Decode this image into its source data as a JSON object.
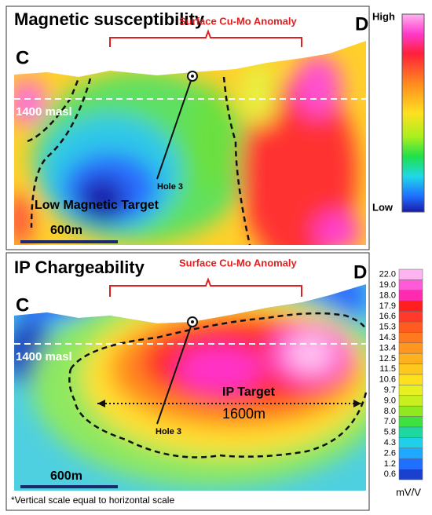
{
  "panels": [
    {
      "title": "Magnetic susceptibility",
      "annotation": "Surface Cu-Mo Anomaly",
      "left_label": "C",
      "right_label": "D",
      "elevation_label": "1400 masl",
      "hole_label": "Hole 3",
      "target_label": "Low Magnetic Target",
      "scale_label": "600m"
    },
    {
      "title": "IP Chargeability",
      "annotation": "Surface Cu-Mo Anomaly",
      "left_label": "C",
      "right_label": "D",
      "elevation_label": "1400 masl",
      "hole_label": "Hole 3",
      "target_label": "IP Target",
      "target_length": "1600m",
      "scale_label": "600m"
    }
  ],
  "colorbars": [
    {
      "top_label": "High",
      "bottom_label": "Low"
    },
    {
      "ticks": [
        "22.0",
        "19.0",
        "18.0",
        "17.9",
        "16.6",
        "15.3",
        "14.3",
        "13.4",
        "12.5",
        "11.5",
        "10.6",
        "9.7",
        "9.0",
        "8.0",
        "7.0",
        "5.8",
        "4.3",
        "2.6",
        "1.2",
        "0.6"
      ],
      "unit": "mV/V"
    }
  ],
  "footnote": "*Vertical scale equal to horizontal scale"
}
